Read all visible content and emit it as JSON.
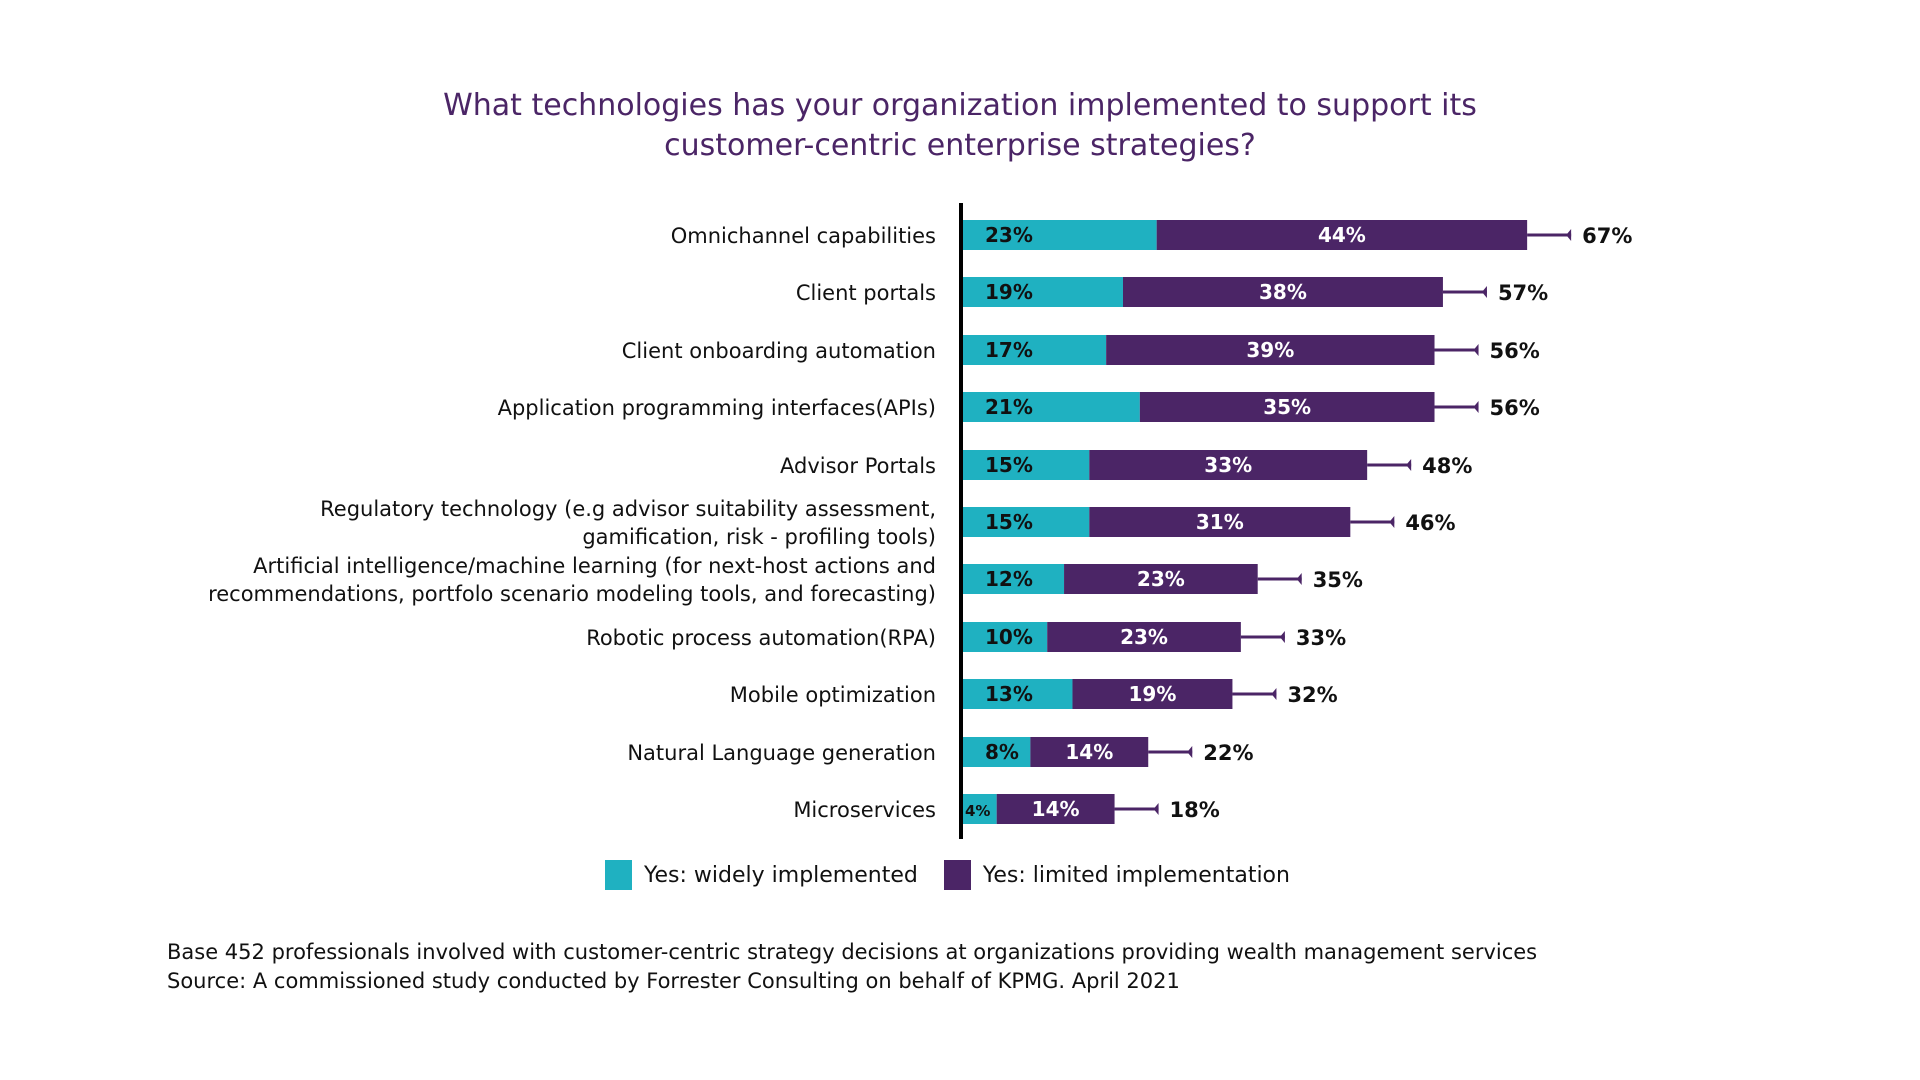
{
  "colors": {
    "widely": "#1fb1c1",
    "limited": "#4b2566",
    "title": "#4b2566",
    "text": "#111111",
    "axis": "#000000"
  },
  "chart_data": {
    "type": "bar",
    "orientation": "horizontal",
    "stacked": true,
    "title": "What technologies has your organization implemented to support its customer-centric enterprise strategies?",
    "title_lines": [
      "What technologies has your organization implemented to support its",
      "customer-centric enterprise strategies?"
    ],
    "xlabel": "",
    "ylabel": "",
    "xlim": [
      0,
      100
    ],
    "grid": false,
    "legend_position": "bottom",
    "unit": "%",
    "categories": [
      [
        "Omnichannel capabilities"
      ],
      [
        "Client portals"
      ],
      [
        "Client onboarding automation"
      ],
      [
        "Application programming interfaces(APIs)"
      ],
      [
        "Advisor Portals"
      ],
      [
        "Regulatory technology (e.g advisor suitability assessment,",
        "gamification, risk - profiling tools)"
      ],
      [
        "Artificial intelligence/machine learning (for next-host actions and",
        "recommendations, portfolo scenario modeling tools, and forecasting)"
      ],
      [
        "Robotic process automation(RPA)"
      ],
      [
        "Mobile optimization"
      ],
      [
        "Natural Language generation"
      ],
      [
        "Microservices"
      ]
    ],
    "series": [
      {
        "name": "Yes: widely implemented",
        "color": "#1fb1c1",
        "values": [
          23,
          19,
          17,
          21,
          15,
          15,
          12,
          10,
          13,
          8,
          4
        ]
      },
      {
        "name": "Yes: limited implementation",
        "color": "#4b2566",
        "values": [
          44,
          38,
          39,
          35,
          33,
          31,
          23,
          23,
          19,
          14,
          14
        ]
      }
    ],
    "totals": [
      67,
      57,
      56,
      56,
      48,
      46,
      35,
      33,
      32,
      22,
      18
    ]
  },
  "legend": {
    "items": [
      {
        "label": "Yes: widely implemented"
      },
      {
        "label": "Yes: limited implementation"
      }
    ]
  },
  "footnote": {
    "line1": "Base 452 professionals involved with customer-centric strategy decisions at organizations providing wealth management services",
    "line2": "Source: A commissioned study conducted by Forrester Consulting on behalf of KPMG. April 2021"
  }
}
